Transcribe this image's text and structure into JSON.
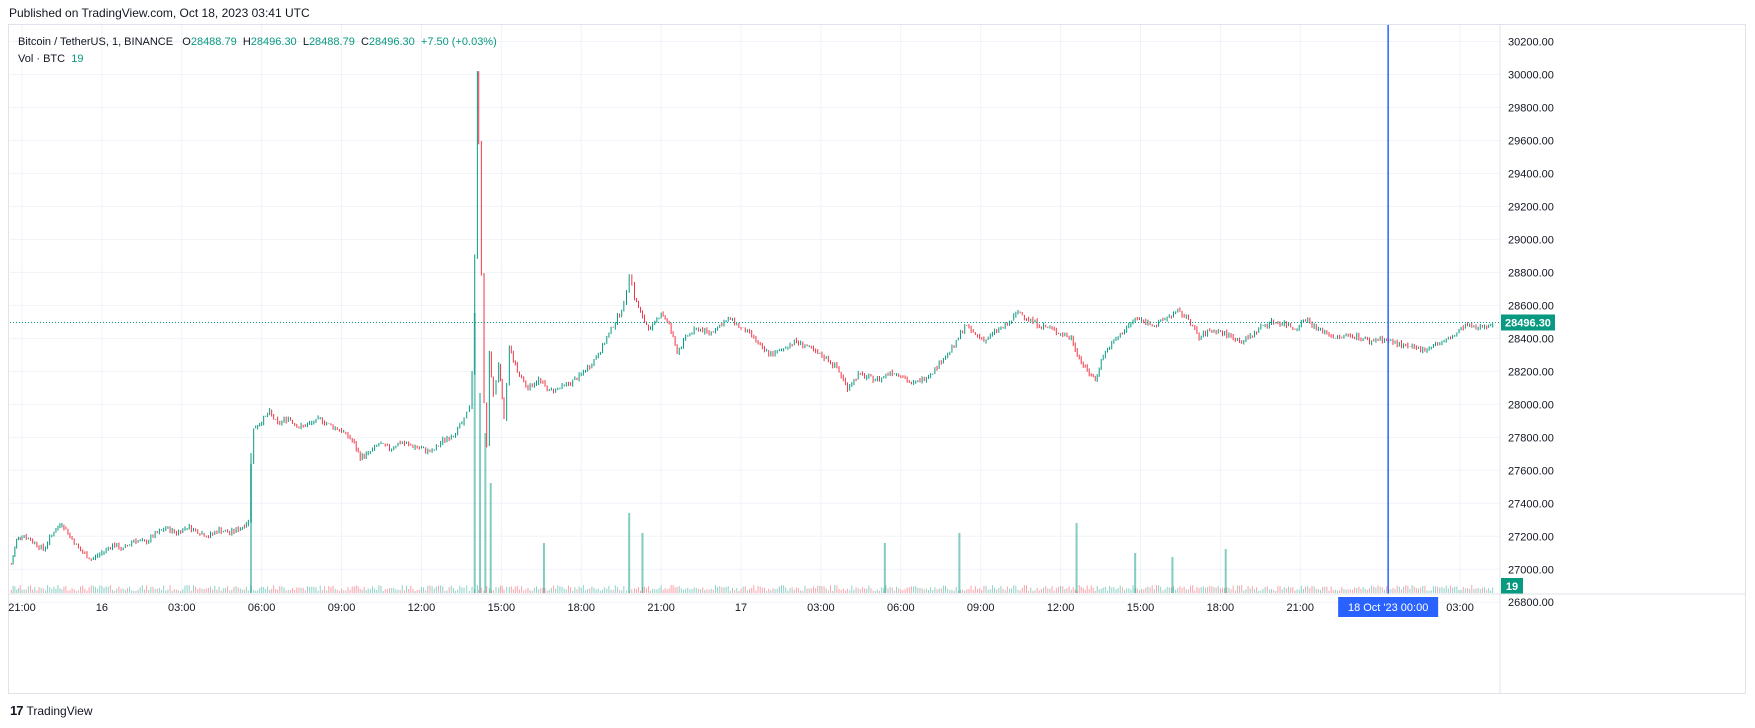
{
  "header": {
    "published": "Published on TradingView.com, Oct 18, 2023 03:41 UTC"
  },
  "legend": {
    "symbol": "Bitcoin / TetherUS, 1, BINANCE",
    "open_label": "O",
    "open": "28488.79",
    "high_label": "H",
    "high": "28496.30",
    "low_label": "L",
    "low": "28488.79",
    "close_label": "C",
    "close": "28496.30",
    "change": "+7.50 (+0.03%)",
    "vol_label": "Vol · BTC",
    "vol_value": "19"
  },
  "footer": {
    "brand": "TradingView",
    "logo": "17"
  },
  "colors": {
    "up": "#089981",
    "down": "#f23645",
    "crosshair": "#2962ff",
    "grid": "#f0f3fa",
    "text": "#131722"
  },
  "chart_data": {
    "type": "line",
    "title": "",
    "ylim": [
      26850,
      30300
    ],
    "y_ticks": [
      30200,
      30000,
      29800,
      29600,
      29400,
      29200,
      29000,
      28800,
      28600,
      28400,
      28200,
      28000,
      27800,
      27600,
      27400,
      27200,
      27000,
      26800
    ],
    "y_tick_labels": [
      "30200.00",
      "30000.00",
      "29800.00",
      "29600.00",
      "29400.00",
      "29200.00",
      "29000.00",
      "28800.00",
      "28600.00",
      "28400.00",
      "28200.00",
      "28000.00",
      "27800.00",
      "27600.00",
      "27400.00",
      "27200.00",
      "27000.00",
      "26800.00"
    ],
    "x_tick_labels": [
      {
        "t": 0,
        "label": "21:00"
      },
      {
        "t": 3,
        "label": "16"
      },
      {
        "t": 6,
        "label": "03:00"
      },
      {
        "t": 9,
        "label": "06:00"
      },
      {
        "t": 12,
        "label": "09:00"
      },
      {
        "t": 15,
        "label": "12:00"
      },
      {
        "t": 18,
        "label": "15:00"
      },
      {
        "t": 21,
        "label": "18:00"
      },
      {
        "t": 24,
        "label": "21:00"
      },
      {
        "t": 27,
        "label": "17"
      },
      {
        "t": 30,
        "label": "03:00"
      },
      {
        "t": 33,
        "label": "06:00"
      },
      {
        "t": 36,
        "label": "09:00"
      },
      {
        "t": 39,
        "label": "12:00"
      },
      {
        "t": 42,
        "label": "15:00"
      },
      {
        "t": 45,
        "label": "18:00"
      },
      {
        "t": 48,
        "label": "21:00"
      },
      {
        "t": 54,
        "label": "03:00"
      }
    ],
    "x_range": [
      -0.45,
      55.5
    ],
    "current_price": 28496.3,
    "current_price_label": "28496.30",
    "volume_label": "19",
    "crosshair": {
      "t": 51.3,
      "label": "18 Oct '23   00:00"
    },
    "series": [
      {
        "values": [
          [
            -0.4,
            27030
          ],
          [
            -0.2,
            27180
          ],
          [
            0.0,
            27210
          ],
          [
            0.4,
            27170
          ],
          [
            0.8,
            27120
          ],
          [
            1.2,
            27230
          ],
          [
            1.5,
            27280
          ],
          [
            1.8,
            27200
          ],
          [
            2.2,
            27110
          ],
          [
            2.6,
            27060
          ],
          [
            3.0,
            27100
          ],
          [
            3.4,
            27150
          ],
          [
            3.8,
            27120
          ],
          [
            4.2,
            27180
          ],
          [
            4.6,
            27160
          ],
          [
            5.0,
            27210
          ],
          [
            5.4,
            27250
          ],
          [
            5.8,
            27220
          ],
          [
            6.2,
            27260
          ],
          [
            6.6,
            27230
          ],
          [
            7.0,
            27200
          ],
          [
            7.4,
            27240
          ],
          [
            7.8,
            27220
          ],
          [
            8.2,
            27250
          ],
          [
            8.5,
            27290
          ],
          [
            8.6,
            27650
          ],
          [
            8.7,
            27850
          ],
          [
            9.0,
            27900
          ],
          [
            9.3,
            27950
          ],
          [
            9.6,
            27880
          ],
          [
            10.0,
            27920
          ],
          [
            10.4,
            27860
          ],
          [
            10.8,
            27880
          ],
          [
            11.2,
            27910
          ],
          [
            11.6,
            27870
          ],
          [
            12.0,
            27840
          ],
          [
            12.4,
            27780
          ],
          [
            12.7,
            27680
          ],
          [
            13.0,
            27700
          ],
          [
            13.4,
            27760
          ],
          [
            13.8,
            27730
          ],
          [
            14.2,
            27770
          ],
          [
            14.6,
            27750
          ],
          [
            15.0,
            27730
          ],
          [
            15.4,
            27710
          ],
          [
            15.8,
            27780
          ],
          [
            16.2,
            27820
          ],
          [
            16.6,
            27900
          ],
          [
            16.8,
            27990
          ],
          [
            16.9,
            28200
          ],
          [
            17.0,
            28900
          ],
          [
            17.1,
            30000
          ],
          [
            17.15,
            29600
          ],
          [
            17.25,
            28800
          ],
          [
            17.35,
            28000
          ],
          [
            17.45,
            27750
          ],
          [
            17.55,
            28300
          ],
          [
            17.7,
            28050
          ],
          [
            17.9,
            28250
          ],
          [
            18.1,
            27900
          ],
          [
            18.3,
            28350
          ],
          [
            18.6,
            28200
          ],
          [
            19.0,
            28100
          ],
          [
            19.4,
            28150
          ],
          [
            19.8,
            28080
          ],
          [
            20.2,
            28100
          ],
          [
            20.6,
            28130
          ],
          [
            21.0,
            28180
          ],
          [
            21.4,
            28250
          ],
          [
            21.8,
            28350
          ],
          [
            22.2,
            28480
          ],
          [
            22.6,
            28600
          ],
          [
            22.8,
            28800
          ],
          [
            23.0,
            28650
          ],
          [
            23.3,
            28520
          ],
          [
            23.6,
            28450
          ],
          [
            24.0,
            28560
          ],
          [
            24.3,
            28480
          ],
          [
            24.6,
            28320
          ],
          [
            25.0,
            28420
          ],
          [
            25.4,
            28460
          ],
          [
            25.8,
            28430
          ],
          [
            26.2,
            28480
          ],
          [
            26.6,
            28520
          ],
          [
            27.0,
            28460
          ],
          [
            27.4,
            28420
          ],
          [
            27.8,
            28330
          ],
          [
            28.2,
            28300
          ],
          [
            28.6,
            28340
          ],
          [
            29.0,
            28380
          ],
          [
            29.4,
            28360
          ],
          [
            29.8,
            28310
          ],
          [
            30.2,
            28280
          ],
          [
            30.6,
            28220
          ],
          [
            31.0,
            28100
          ],
          [
            31.4,
            28180
          ],
          [
            31.8,
            28160
          ],
          [
            32.2,
            28150
          ],
          [
            32.6,
            28200
          ],
          [
            33.0,
            28180
          ],
          [
            33.4,
            28120
          ],
          [
            33.8,
            28150
          ],
          [
            34.2,
            28200
          ],
          [
            34.6,
            28280
          ],
          [
            35.0,
            28350
          ],
          [
            35.4,
            28480
          ],
          [
            35.8,
            28420
          ],
          [
            36.2,
            28390
          ],
          [
            36.6,
            28450
          ],
          [
            37.0,
            28480
          ],
          [
            37.4,
            28560
          ],
          [
            37.8,
            28520
          ],
          [
            38.2,
            28480
          ],
          [
            38.6,
            28460
          ],
          [
            39.0,
            28430
          ],
          [
            39.4,
            28400
          ],
          [
            39.7,
            28280
          ],
          [
            40.0,
            28200
          ],
          [
            40.3,
            28150
          ],
          [
            40.6,
            28300
          ],
          [
            41.0,
            28380
          ],
          [
            41.4,
            28450
          ],
          [
            41.8,
            28520
          ],
          [
            42.2,
            28500
          ],
          [
            42.6,
            28480
          ],
          [
            43.0,
            28530
          ],
          [
            43.4,
            28560
          ],
          [
            43.8,
            28520
          ],
          [
            44.2,
            28400
          ],
          [
            44.6,
            28450
          ],
          [
            45.0,
            28440
          ],
          [
            45.4,
            28410
          ],
          [
            45.8,
            28380
          ],
          [
            46.2,
            28420
          ],
          [
            46.6,
            28480
          ],
          [
            47.0,
            28500
          ],
          [
            47.4,
            28490
          ],
          [
            47.8,
            28460
          ],
          [
            48.2,
            28520
          ],
          [
            48.6,
            28460
          ],
          [
            49.0,
            28430
          ],
          [
            49.4,
            28400
          ],
          [
            49.8,
            28420
          ],
          [
            50.2,
            28410
          ],
          [
            50.6,
            28380
          ],
          [
            51.0,
            28400
          ],
          [
            51.4,
            28380
          ],
          [
            51.8,
            28360
          ],
          [
            52.2,
            28340
          ],
          [
            52.6,
            28330
          ],
          [
            53.0,
            28360
          ],
          [
            53.4,
            28380
          ],
          [
            53.8,
            28420
          ],
          [
            54.2,
            28480
          ],
          [
            54.6,
            28460
          ],
          [
            55.0,
            28480
          ],
          [
            55.3,
            28496.3
          ]
        ]
      }
    ],
    "volume": [
      [
        8.6,
        70
      ],
      [
        17.0,
        140
      ],
      [
        17.2,
        100
      ],
      [
        17.4,
        80
      ],
      [
        17.6,
        55
      ],
      [
        22.8,
        40
      ],
      [
        39.6,
        35
      ],
      [
        35.2,
        30
      ],
      [
        32.4,
        25
      ],
      [
        23.3,
        30
      ],
      [
        19.6,
        25
      ],
      [
        41.8,
        20
      ],
      [
        43.2,
        18
      ],
      [
        45.2,
        22
      ]
    ]
  }
}
